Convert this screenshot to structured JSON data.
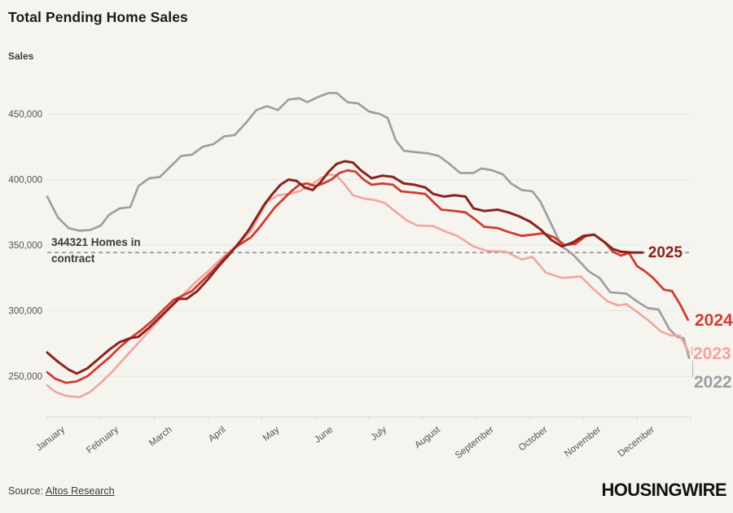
{
  "header": {
    "title": "Total Pending Home Sales",
    "ylabel": "Sales"
  },
  "annotation": {
    "line1": "344321 Homes in",
    "line2": "contract",
    "value": 344321
  },
  "footer": {
    "source_prefix": "Source: ",
    "source_link": "Altos Research",
    "logo": "HOUSINGWIRE"
  },
  "colors": {
    "background": "#f5f4ef",
    "grid": "#e8e7e1",
    "axis": "#d9d8d2",
    "tick_text": "#55534e",
    "dashed_line": "#777777"
  },
  "chart_data": {
    "type": "line",
    "title": "Total Pending Home Sales",
    "ylabel": "Sales",
    "xlabel": "",
    "grid": "horizontal",
    "legend_position": "right-end-labels",
    "x_tick_labels": [
      "January",
      "February",
      "March",
      "April",
      "May",
      "June",
      "July",
      "August",
      "September",
      "October",
      "November",
      "December"
    ],
    "y_ticks": [
      250000,
      300000,
      350000,
      400000,
      450000
    ],
    "y_tick_labels": [
      "250,000",
      "300,000",
      "350,000",
      "400,000",
      "450,000"
    ],
    "ylim": [
      219000,
      478000
    ],
    "xlim_months": [
      0,
      12
    ],
    "reference_line": {
      "value": 344321,
      "label": "344321 Homes in contract",
      "style": "dashed",
      "color": "#777777"
    },
    "series": [
      {
        "name": "2022",
        "color": "#9c9ca4",
        "width": 2.6,
        "points": [
          [
            0,
            387000
          ],
          [
            0.2,
            371000
          ],
          [
            0.4,
            363000
          ],
          [
            0.6,
            361000
          ],
          [
            0.8,
            361500
          ],
          [
            1.0,
            365000
          ],
          [
            1.15,
            373000
          ],
          [
            1.35,
            378000
          ],
          [
            1.55,
            379000
          ],
          [
            1.7,
            395000
          ],
          [
            1.9,
            401000
          ],
          [
            2.1,
            402000
          ],
          [
            2.3,
            410000
          ],
          [
            2.5,
            418000
          ],
          [
            2.7,
            419000
          ],
          [
            2.9,
            425000
          ],
          [
            3.1,
            427000
          ],
          [
            3.3,
            433000
          ],
          [
            3.5,
            434000
          ],
          [
            3.7,
            443000
          ],
          [
            3.9,
            453000
          ],
          [
            4.1,
            456000
          ],
          [
            4.3,
            453000
          ],
          [
            4.5,
            461000
          ],
          [
            4.7,
            462000
          ],
          [
            4.85,
            459000
          ],
          [
            5.05,
            463000
          ],
          [
            5.25,
            466000
          ],
          [
            5.4,
            466000
          ],
          [
            5.6,
            459000
          ],
          [
            5.8,
            458000
          ],
          [
            6.0,
            452000
          ],
          [
            6.2,
            450000
          ],
          [
            6.35,
            447000
          ],
          [
            6.5,
            430000
          ],
          [
            6.65,
            422000
          ],
          [
            6.85,
            421000
          ],
          [
            7.1,
            420000
          ],
          [
            7.3,
            418000
          ],
          [
            7.5,
            412000
          ],
          [
            7.7,
            405000
          ],
          [
            7.95,
            405000
          ],
          [
            8.1,
            408500
          ],
          [
            8.3,
            407000
          ],
          [
            8.5,
            404000
          ],
          [
            8.65,
            397000
          ],
          [
            8.85,
            392000
          ],
          [
            9.05,
            391000
          ],
          [
            9.2,
            383000
          ],
          [
            9.4,
            366000
          ],
          [
            9.6,
            349000
          ],
          [
            9.8,
            343000
          ],
          [
            10.1,
            330000
          ],
          [
            10.3,
            325000
          ],
          [
            10.5,
            314000
          ],
          [
            10.8,
            313000
          ],
          [
            11.0,
            307000
          ],
          [
            11.2,
            302000
          ],
          [
            11.4,
            301000
          ],
          [
            11.6,
            286000
          ],
          [
            11.75,
            280000
          ],
          [
            11.87,
            279000
          ],
          [
            11.97,
            264000
          ]
        ]
      },
      {
        "name": "2023",
        "color": "#f2a59e",
        "width": 2.6,
        "points": [
          [
            0,
            243000
          ],
          [
            0.15,
            238000
          ],
          [
            0.35,
            235000
          ],
          [
            0.6,
            234000
          ],
          [
            0.8,
            238000
          ],
          [
            1.0,
            245000
          ],
          [
            1.2,
            253000
          ],
          [
            1.4,
            262000
          ],
          [
            1.6,
            271000
          ],
          [
            1.8,
            280000
          ],
          [
            2.0,
            289000
          ],
          [
            2.2,
            298000
          ],
          [
            2.4,
            306000
          ],
          [
            2.6,
            315000
          ],
          [
            2.8,
            323000
          ],
          [
            3.0,
            330000
          ],
          [
            3.2,
            338000
          ],
          [
            3.4,
            345000
          ],
          [
            3.6,
            352000
          ],
          [
            3.8,
            361000
          ],
          [
            3.95,
            372000
          ],
          [
            4.1,
            383000
          ],
          [
            4.3,
            388000
          ],
          [
            4.5,
            389000
          ],
          [
            4.7,
            391000
          ],
          [
            4.9,
            395000
          ],
          [
            5.1,
            401000
          ],
          [
            5.25,
            404000
          ],
          [
            5.4,
            403000
          ],
          [
            5.55,
            396000
          ],
          [
            5.7,
            388000
          ],
          [
            5.9,
            385500
          ],
          [
            6.1,
            384500
          ],
          [
            6.3,
            382000
          ],
          [
            6.45,
            377000
          ],
          [
            6.7,
            369000
          ],
          [
            6.9,
            365000
          ],
          [
            7.2,
            364500
          ],
          [
            7.45,
            360000
          ],
          [
            7.65,
            357000
          ],
          [
            7.95,
            349000
          ],
          [
            8.2,
            345500
          ],
          [
            8.55,
            345000
          ],
          [
            8.85,
            339000
          ],
          [
            9.05,
            341000
          ],
          [
            9.3,
            329000
          ],
          [
            9.6,
            325000
          ],
          [
            9.95,
            326000
          ],
          [
            10.2,
            316000
          ],
          [
            10.45,
            307000
          ],
          [
            10.65,
            304000
          ],
          [
            10.8,
            305000
          ],
          [
            11.0,
            299000
          ],
          [
            11.2,
            293000
          ],
          [
            11.45,
            284000
          ],
          [
            11.65,
            281000
          ],
          [
            11.8,
            281000
          ],
          [
            11.97,
            268000
          ]
        ]
      },
      {
        "name": "2024",
        "color": "#d23b2f",
        "width": 2.8,
        "points": [
          [
            0,
            253000
          ],
          [
            0.15,
            248000
          ],
          [
            0.35,
            245000
          ],
          [
            0.55,
            246000
          ],
          [
            0.75,
            250000
          ],
          [
            0.95,
            257000
          ],
          [
            1.15,
            264000
          ],
          [
            1.35,
            272000
          ],
          [
            1.55,
            279000
          ],
          [
            1.75,
            285000
          ],
          [
            1.95,
            292000
          ],
          [
            2.15,
            300000
          ],
          [
            2.35,
            308000
          ],
          [
            2.55,
            312000
          ],
          [
            2.7,
            315000
          ],
          [
            2.9,
            323000
          ],
          [
            3.1,
            331000
          ],
          [
            3.3,
            340000
          ],
          [
            3.5,
            348000
          ],
          [
            3.65,
            352000
          ],
          [
            3.8,
            356000
          ],
          [
            3.95,
            363000
          ],
          [
            4.1,
            371000
          ],
          [
            4.25,
            379000
          ],
          [
            4.4,
            385000
          ],
          [
            4.55,
            391000
          ],
          [
            4.7,
            396000
          ],
          [
            4.85,
            397000
          ],
          [
            5.0,
            395000
          ],
          [
            5.15,
            397000
          ],
          [
            5.3,
            400000
          ],
          [
            5.45,
            405000
          ],
          [
            5.6,
            407000
          ],
          [
            5.75,
            406000
          ],
          [
            5.9,
            400000
          ],
          [
            6.05,
            396000
          ],
          [
            6.25,
            397000
          ],
          [
            6.45,
            396000
          ],
          [
            6.6,
            391000
          ],
          [
            6.85,
            390000
          ],
          [
            7.05,
            389000
          ],
          [
            7.2,
            383000
          ],
          [
            7.35,
            377000
          ],
          [
            7.6,
            376000
          ],
          [
            7.8,
            375000
          ],
          [
            8.0,
            369000
          ],
          [
            8.15,
            364000
          ],
          [
            8.4,
            363000
          ],
          [
            8.6,
            360000
          ],
          [
            8.85,
            357000
          ],
          [
            9.05,
            358000
          ],
          [
            9.25,
            359000
          ],
          [
            9.45,
            356000
          ],
          [
            9.65,
            350000
          ],
          [
            9.85,
            351000
          ],
          [
            10.05,
            357000
          ],
          [
            10.2,
            358000
          ],
          [
            10.4,
            352000
          ],
          [
            10.55,
            345000
          ],
          [
            10.7,
            342000
          ],
          [
            10.85,
            344000
          ],
          [
            11.0,
            334000
          ],
          [
            11.15,
            330000
          ],
          [
            11.3,
            325000
          ],
          [
            11.5,
            316000
          ],
          [
            11.65,
            315000
          ],
          [
            11.8,
            305000
          ],
          [
            11.95,
            293000
          ]
        ]
      },
      {
        "name": "2025",
        "color": "#8a231e",
        "width": 3,
        "points": [
          [
            0,
            268000
          ],
          [
            0.2,
            261000
          ],
          [
            0.4,
            255000
          ],
          [
            0.55,
            252000
          ],
          [
            0.75,
            256000
          ],
          [
            0.95,
            263000
          ],
          [
            1.15,
            270000
          ],
          [
            1.35,
            276000
          ],
          [
            1.55,
            279000
          ],
          [
            1.7,
            280000
          ],
          [
            1.9,
            287000
          ],
          [
            2.1,
            295000
          ],
          [
            2.3,
            303000
          ],
          [
            2.45,
            309000
          ],
          [
            2.6,
            309000
          ],
          [
            2.8,
            315000
          ],
          [
            3.0,
            324000
          ],
          [
            3.2,
            334000
          ],
          [
            3.4,
            343000
          ],
          [
            3.6,
            353000
          ],
          [
            3.75,
            361000
          ],
          [
            3.9,
            371000
          ],
          [
            4.05,
            381000
          ],
          [
            4.2,
            389000
          ],
          [
            4.35,
            396000
          ],
          [
            4.5,
            400000
          ],
          [
            4.65,
            399000
          ],
          [
            4.8,
            394000
          ],
          [
            4.95,
            392000
          ],
          [
            5.1,
            398000
          ],
          [
            5.25,
            406000
          ],
          [
            5.4,
            412000
          ],
          [
            5.55,
            414000
          ],
          [
            5.7,
            413000
          ],
          [
            5.85,
            407000
          ],
          [
            6.05,
            401000
          ],
          [
            6.25,
            403000
          ],
          [
            6.45,
            402000
          ],
          [
            6.65,
            397000
          ],
          [
            6.85,
            396000
          ],
          [
            7.05,
            394000
          ],
          [
            7.2,
            389000
          ],
          [
            7.4,
            387000
          ],
          [
            7.6,
            388000
          ],
          [
            7.8,
            387000
          ],
          [
            7.95,
            378000
          ],
          [
            8.15,
            376000
          ],
          [
            8.4,
            377000
          ],
          [
            8.6,
            375000
          ],
          [
            8.8,
            372000
          ],
          [
            9.0,
            368000
          ],
          [
            9.2,
            362000
          ],
          [
            9.4,
            354000
          ],
          [
            9.6,
            349000
          ],
          [
            9.8,
            352000
          ],
          [
            10.0,
            357000
          ],
          [
            10.2,
            358000
          ],
          [
            10.4,
            352000
          ],
          [
            10.55,
            347000
          ],
          [
            10.7,
            345000
          ],
          [
            10.9,
            344321
          ],
          [
            11.1,
            344321
          ]
        ]
      }
    ]
  }
}
